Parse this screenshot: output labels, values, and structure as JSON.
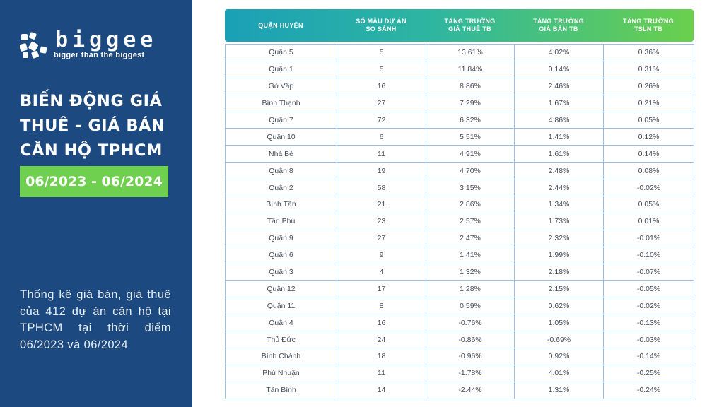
{
  "brand": {
    "wordmark": "biggee",
    "tagline": "bigger than the biggest",
    "logo_color": "#ffffff"
  },
  "left_panel": {
    "background": "#1c4a80",
    "title_lines": [
      "BIẾN ĐỘNG GIÁ",
      "THUÊ - GIÁ BÁN",
      "CĂN HỘ TPHCM"
    ],
    "period": "06/2023 - 06/2024",
    "period_color": "#6fcf4f",
    "description": "Thống kê giá bán, giá thuê của 412 dự án căn hộ tại TPHCM tại thời điểm 06/2023 và 06/2024"
  },
  "table": {
    "headers": [
      [
        "QUẬN HUYỆN"
      ],
      [
        "SỐ MẪU DỰ ÁN",
        "SO SÁNH"
      ],
      [
        "TĂNG TRƯỞNG",
        "GIÁ THUÊ TB"
      ],
      [
        "TĂNG TRƯỞNG",
        "GIÁ BÁN TB"
      ],
      [
        "TĂNG TRƯỞNG",
        "TSLN TB"
      ]
    ],
    "positive_color": "#1aa84a",
    "negative_color": "#e0383d",
    "rows": [
      {
        "district": "Quận 5",
        "samples": "5",
        "rent": "13.61%",
        "sale": "4.02%",
        "yield": "0.36%"
      },
      {
        "district": "Quận 1",
        "samples": "5",
        "rent": "11.84%",
        "sale": "0.14%",
        "yield": "0.31%"
      },
      {
        "district": "Gò Vấp",
        "samples": "16",
        "rent": "8.86%",
        "sale": "2.46%",
        "yield": "0.26%"
      },
      {
        "district": "Bình Thạnh",
        "samples": "27",
        "rent": "7.29%",
        "sale": "1.67%",
        "yield": "0.21%"
      },
      {
        "district": "Quận 7",
        "samples": "72",
        "rent": "6.32%",
        "sale": "4.86%",
        "yield": "0.05%"
      },
      {
        "district": "Quận 10",
        "samples": "6",
        "rent": "5.51%",
        "sale": "1.41%",
        "yield": "0.12%"
      },
      {
        "district": "Nhà Bè",
        "samples": "11",
        "rent": "4.91%",
        "sale": "1.61%",
        "yield": "0.14%"
      },
      {
        "district": "Quận 8",
        "samples": "19",
        "rent": "4.70%",
        "sale": "2.48%",
        "yield": "0.08%"
      },
      {
        "district": "Quận 2",
        "samples": "58",
        "rent": "3.15%",
        "sale": "2.44%",
        "yield": "-0.02%"
      },
      {
        "district": "Bình Tân",
        "samples": "21",
        "rent": "2.86%",
        "sale": "1.34%",
        "yield": "0.05%"
      },
      {
        "district": "Tân Phú",
        "samples": "23",
        "rent": "2.57%",
        "sale": "1.73%",
        "yield": "0.01%"
      },
      {
        "district": "Quận 9",
        "samples": "27",
        "rent": "2.47%",
        "sale": "2.32%",
        "yield": "-0.01%"
      },
      {
        "district": "Quận 6",
        "samples": "9",
        "rent": "1.41%",
        "sale": "1.99%",
        "yield": "-0.10%"
      },
      {
        "district": "Quận 3",
        "samples": "4",
        "rent": "1.32%",
        "sale": "2.18%",
        "yield": "-0.07%"
      },
      {
        "district": "Quận 12",
        "samples": "17",
        "rent": "1.28%",
        "sale": "2.15%",
        "yield": "-0.05%"
      },
      {
        "district": "Quận 11",
        "samples": "8",
        "rent": "0.59%",
        "sale": "0.62%",
        "yield": "-0.02%"
      },
      {
        "district": "Quận 4",
        "samples": "16",
        "rent": "-0.76%",
        "sale": "1.05%",
        "yield": "-0.13%"
      },
      {
        "district": "Thủ Đức",
        "samples": "24",
        "rent": "-0.86%",
        "sale": "-0.69%",
        "yield": "-0.03%"
      },
      {
        "district": "Bình Chánh",
        "samples": "18",
        "rent": "-0.96%",
        "sale": "0.92%",
        "yield": "-0.14%"
      },
      {
        "district": "Phú Nhuận",
        "samples": "11",
        "rent": "-1.78%",
        "sale": "4.01%",
        "yield": "-0.25%"
      },
      {
        "district": "Tân Bình",
        "samples": "14",
        "rent": "-2.44%",
        "sale": "1.31%",
        "yield": "-0.24%"
      }
    ]
  }
}
